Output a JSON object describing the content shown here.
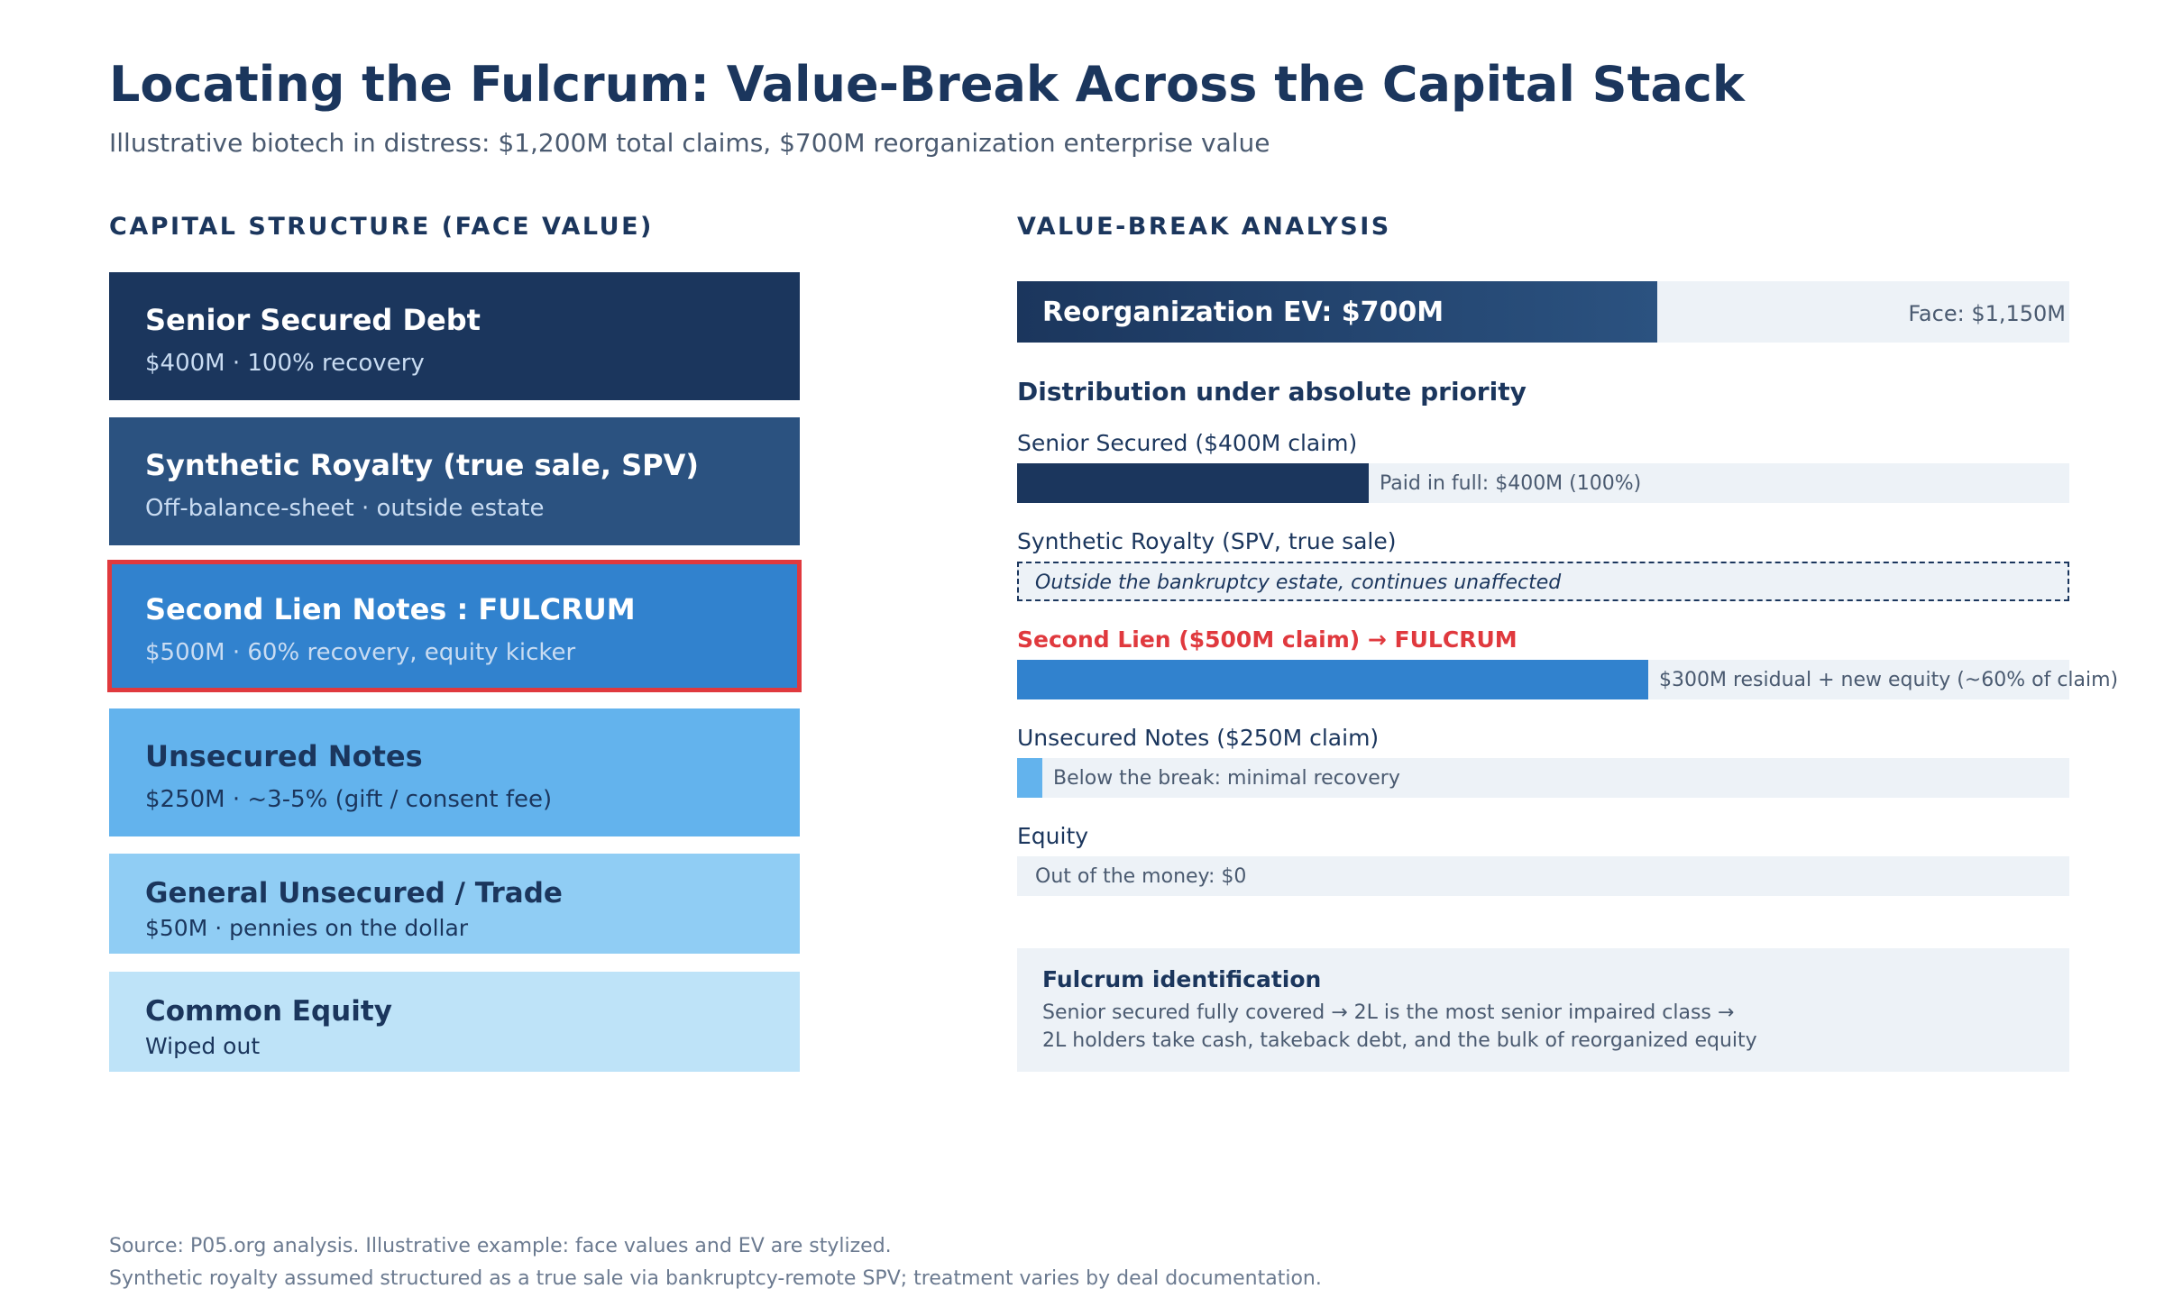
{
  "header": {
    "title": "Locating the Fulcrum: Value-Break Across the Capital Stack",
    "subtitle": "Illustrative biotech in distress: $1,200M total claims, $700M reorganization enterprise value"
  },
  "capital_structure": {
    "heading": "CAPITAL STRUCTURE (FACE VALUE)",
    "tranches": [
      {
        "name": "Senior Secured Debt",
        "detail": "$400M · 100% recovery",
        "color": "#1b365d"
      },
      {
        "name": "Synthetic Royalty (true sale, SPV)",
        "detail": "Off-balance-sheet · outside estate",
        "color": "#2b5280"
      },
      {
        "name": "Second Lien Notes : FULCRUM",
        "detail": "$500M · 60% recovery, equity kicker",
        "color": "#3182ce",
        "highlight": "#e0393e"
      },
      {
        "name": "Unsecured Notes",
        "detail": "$250M · ~3-5% (gift / consent fee)",
        "color": "#63b3ed"
      },
      {
        "name": "General Unsecured / Trade",
        "detail": "$50M · pennies on the dollar",
        "color": "#90cdf4"
      },
      {
        "name": "Common Equity",
        "detail": "Wiped out",
        "color": "#bee3f8"
      }
    ]
  },
  "value_break": {
    "heading": "VALUE-BREAK ANALYSIS",
    "ev_bar": {
      "label": "Reorganization EV: $700M",
      "face_label": "Face: $1,150M",
      "ev": 700,
      "face": 1150
    },
    "distribution_heading": "Distribution under absolute priority",
    "rows": [
      {
        "label": "Senior Secured ($400M claim)",
        "bar_text": "Paid in full: $400M (100%)",
        "fraction": 0.334,
        "color": "#1b365d"
      },
      {
        "label": "Synthetic Royalty (SPV, true sale)",
        "bar_text": "Outside the bankruptcy estate, continues unaffected"
      },
      {
        "label": "Second Lien ($500M claim) → FULCRUM",
        "bar_text": "$300M residual + new equity (~60% of claim)",
        "fraction": 0.6,
        "color": "#3182ce"
      },
      {
        "label": "Unsecured Notes ($250M claim)",
        "bar_text": "Below the break: minimal recovery",
        "fraction": 0.024,
        "color": "#63b3ed"
      },
      {
        "label": "Equity",
        "bar_text": "Out of the money: $0",
        "fraction": 0
      }
    ],
    "fulcrum_box": {
      "title": "Fulcrum identification",
      "line1": "Senior secured fully covered → 2L is the most senior impaired class →",
      "line2": "2L holders take cash, takeback debt, and the bulk of reorganized equity"
    }
  },
  "footer": {
    "source1": "Source: P05.org analysis. Illustrative example: face values and EV are stylized.",
    "source2": "Synthetic royalty assumed structured as a true sale via bankruptcy-remote SPV; treatment varies by deal documentation."
  },
  "colors": {
    "navy": "#1b365d",
    "fulcrum_red": "#e0393e",
    "track": "#edf2f7"
  }
}
